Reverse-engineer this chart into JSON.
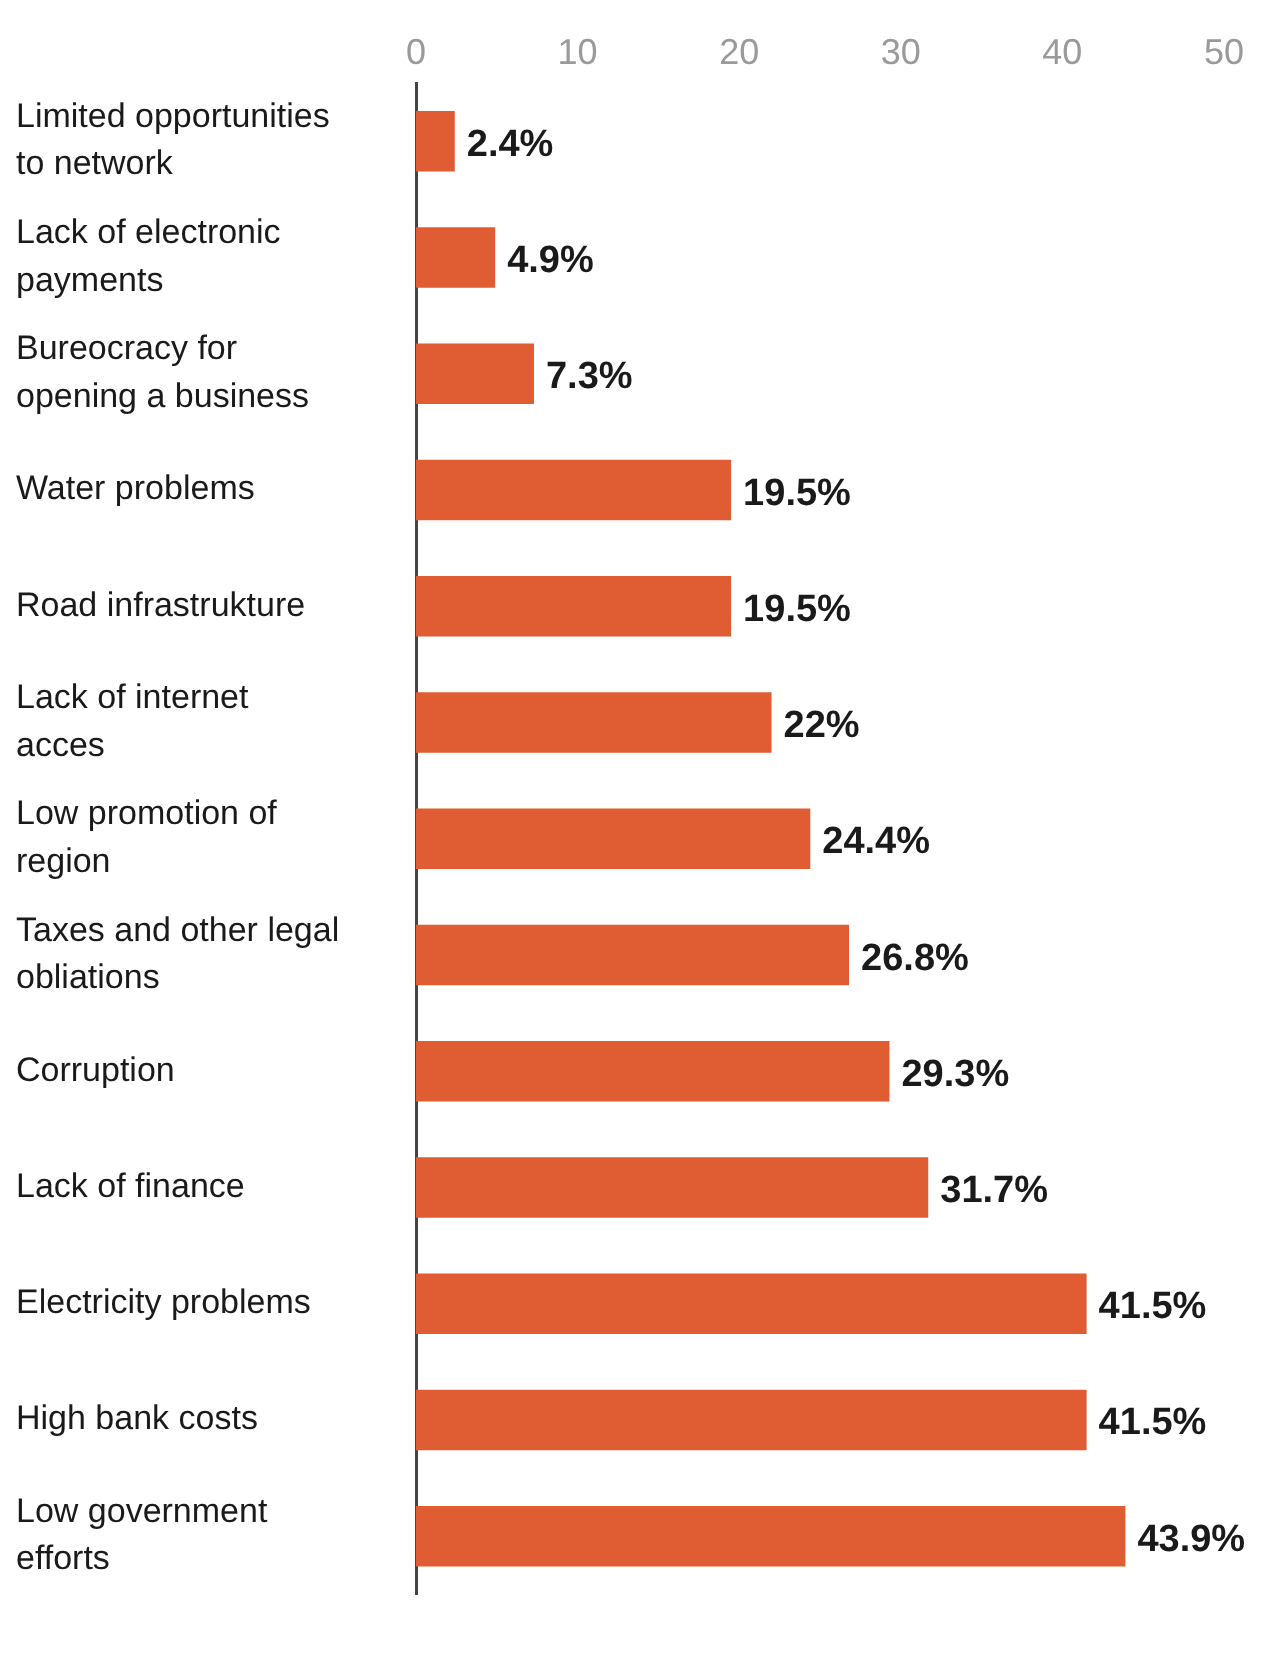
{
  "chart_data": {
    "type": "bar",
    "orientation": "horizontal",
    "categories": [
      "Limited opportunities to network",
      "Lack of electronic payments",
      "Bureocracy for opening a business",
      "Water problems",
      "Road infrastrukture",
      "Lack of internet acces",
      "Low promotion of region",
      "Taxes and other legal obliations",
      "Corruption",
      "Lack of finance",
      "Electricity problems",
      "High bank costs",
      "Low government efforts"
    ],
    "values": [
      2.4,
      4.9,
      7.3,
      19.5,
      19.5,
      22,
      24.4,
      26.8,
      29.3,
      31.7,
      41.5,
      41.5,
      43.9
    ],
    "value_labels": [
      "2.4%",
      "4.9%",
      "7.3%",
      "19.5%",
      "19.5%",
      "22%",
      "24.4%",
      "26.8%",
      "29.3%",
      "31.7%",
      "41.5%",
      "41.5%",
      "43.9%"
    ],
    "color": "#e05d33",
    "xlim": [
      0,
      50
    ],
    "xticks": [
      0,
      10,
      20,
      30,
      40,
      50
    ],
    "grid": false,
    "legend": false
  }
}
